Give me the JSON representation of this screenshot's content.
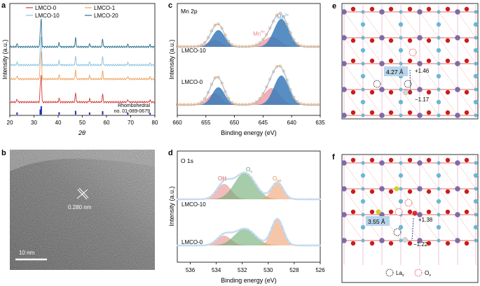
{
  "colors": {
    "lmco0": "#d43a3a",
    "lmco1": "#f0a060",
    "lmco10": "#8cc3e0",
    "lmco20": "#2a6e8c",
    "ref": "#1a2fb0",
    "mn4_fill": "#f0a0a8",
    "mn3_fill": "#3a7ab8",
    "oh_fill": "#e89090",
    "ov_fill": "#6aaa72",
    "olat_fill": "#f0a070",
    "la": "#7f6aa8",
    "mn": "#6ab8d4",
    "o": "#cc1b1b",
    "vac_o": "#e03030"
  },
  "panel_a": {
    "letter": "a",
    "legend": [
      "LMCO-0",
      "LMCO-1",
      "LMCO-10",
      "LMCO-20"
    ],
    "ylabel": "Intensity (a.u.)",
    "xlabel": "2θ",
    "ref_label_1": "Rhombohedral",
    "ref_label_2": "no. 01-089-0679"
  },
  "panel_b": {
    "letter": "b",
    "spacing": "0.280 nm",
    "scale": "10 nm"
  },
  "panel_c": {
    "letter": "c",
    "title": "Mn 2p",
    "mn3": "Mn",
    "mn3_sup": "3+",
    "mn4": "Mn",
    "mn4_sup": "4+",
    "label_top": "LMCO-10",
    "label_bottom": "LMCO-0",
    "ylabel": "Intensity (a.u.)",
    "xlabel": "Binding energy (eV)"
  },
  "panel_d": {
    "letter": "d",
    "title": "O 1s",
    "oh": "OH",
    "ov": "O",
    "ov_sub": "v",
    "olat": "O",
    "olat_sub": "lat",
    "label_top": "LMCO-10",
    "label_bottom": "LMCO-0",
    "ylabel": "Intensity (a.u.)",
    "xlabel": "Binding energy (eV)"
  },
  "panel_e": {
    "letter": "e",
    "distance": "4.27 Å",
    "charge_top": "+1.46",
    "charge_bottom": "−1.17"
  },
  "panel_f": {
    "letter": "f",
    "distance": "3.55 Å",
    "charge_top": "+1.38",
    "charge_bottom": "−1.22",
    "legend_la": "La",
    "legend_la_sub": "v",
    "legend_o": "O",
    "legend_o_sub": "v"
  },
  "chart_data": [
    {
      "panel": "a",
      "type": "line",
      "title": "",
      "xlabel": "2θ",
      "ylabel": "Intensity (a.u.)",
      "xlim": [
        20,
        80
      ],
      "x_ticks": [
        20,
        30,
        40,
        50,
        60,
        70,
        80
      ],
      "series": [
        {
          "name": "LMCO-0"
        },
        {
          "name": "LMCO-1"
        },
        {
          "name": "LMCO-10"
        },
        {
          "name": "LMCO-20"
        }
      ],
      "peak_positions": [
        23.0,
        32.6,
        33.0,
        40.4,
        47.2,
        53.0,
        58.4,
        68.8,
        78.0
      ],
      "reference": {
        "name": "Rhombohedral no. 01-089-0679",
        "peaks": [
          23.0,
          32.6,
          33.0,
          40.4,
          47.2,
          53.0,
          58.4,
          68.8,
          78.0
        ]
      }
    },
    {
      "panel": "c",
      "type": "line",
      "title": "Mn 2p",
      "xlabel": "Binding energy (eV)",
      "ylabel": "Intensity (a.u.)",
      "xlim": [
        660,
        635
      ],
      "x_ticks": [
        660,
        655,
        650,
        645,
        640,
        635
      ],
      "series": [
        {
          "name": "LMCO-10"
        },
        {
          "name": "LMCO-0"
        }
      ],
      "components": [
        {
          "name": "Mn4+",
          "centers_eV": [
            653.5,
            643.5
          ]
        },
        {
          "name": "Mn3+",
          "centers_eV": [
            652.8,
            641.8
          ]
        }
      ]
    },
    {
      "panel": "d",
      "type": "line",
      "title": "O 1s",
      "xlabel": "Binding energy (eV)",
      "ylabel": "Intensity (a.u.)",
      "xlim": [
        537,
        526
      ],
      "x_ticks": [
        536,
        534,
        532,
        530,
        528,
        526
      ],
      "series": [
        {
          "name": "LMCO-10"
        },
        {
          "name": "LMCO-0"
        }
      ],
      "components": [
        {
          "name": "OH",
          "center_eV": 533.4
        },
        {
          "name": "Ov",
          "center_eV": 531.8
        },
        {
          "name": "Olat",
          "center_eV": 529.3
        }
      ]
    }
  ]
}
